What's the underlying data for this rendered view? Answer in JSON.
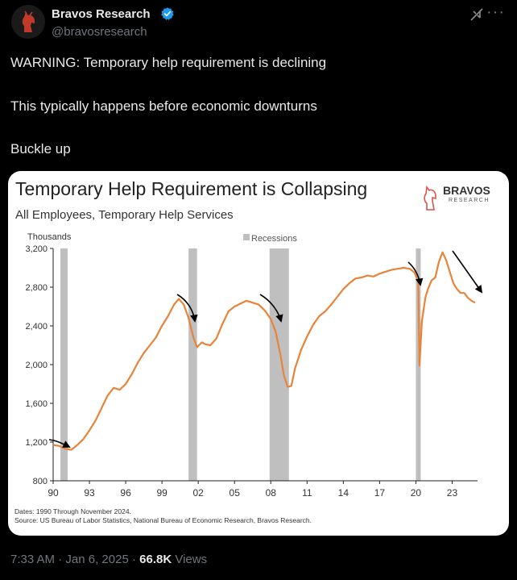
{
  "author": {
    "name": "Bravos Research",
    "handle": "@bravosresearch"
  },
  "icons": {
    "avatar": "bravos-knight-logo",
    "verified": "verified-badge-icon",
    "grok": "grok-icon",
    "more": "more-icon",
    "arrow": "arrow-icon"
  },
  "colors": {
    "accent": "#1d9bf0",
    "line": "#e8833a",
    "recession": "#bfbfbf",
    "brand_red": "#d9534f"
  },
  "tweet": {
    "line1": "WARNING: Temporary help requirement is declining",
    "line2": "This typically happens before economic downturns",
    "line3": "Buckle up"
  },
  "chart_data": {
    "type": "line",
    "title": "Temporary Help Requirement is Collapsing",
    "subtitle": "All Employees, Temporary Help Services",
    "ylabel": "Thousands",
    "legend": "Recessions",
    "legend_placement": "top-center",
    "brand": {
      "name": "BRAVOS",
      "tagline": "RESEARCH"
    },
    "grid": false,
    "ylim": [
      800,
      3200
    ],
    "xlim": [
      1990,
      2025.1
    ],
    "y_ticks": [
      800,
      1200,
      1600,
      2000,
      2400,
      2800,
      3200
    ],
    "y_tick_labels": [
      "800",
      "1,200",
      "1,600",
      "2,000",
      "2,400",
      "2,800",
      "3,200"
    ],
    "x_ticks": [
      1990,
      1993,
      1996,
      1999,
      2002,
      2005,
      2008,
      2011,
      2014,
      2017,
      2020,
      2023
    ],
    "x_tick_labels": [
      "90",
      "93",
      "96",
      "99",
      "02",
      "05",
      "08",
      "11",
      "14",
      "17",
      "20",
      "23"
    ],
    "recessions": [
      [
        1990.6,
        1991.2
      ],
      [
        2001.2,
        2001.9
      ],
      [
        2007.9,
        2009.5
      ],
      [
        2020.0,
        2020.4
      ]
    ],
    "series": [
      {
        "x": [
          1990.0,
          1990.5,
          1991.0,
          1991.5,
          1992.0,
          1992.5,
          1993.0,
          1993.5,
          1994.0,
          1994.5,
          1995.0,
          1995.5,
          1996.0,
          1996.5,
          1997.0,
          1997.5,
          1998.0,
          1998.5,
          1999.0,
          1999.5,
          2000.0,
          2000.4,
          2000.8,
          2001.2,
          2001.6,
          2001.9,
          2002.3,
          2002.6,
          2003.0,
          2003.5,
          2004.0,
          2004.5,
          2005.0,
          2005.5,
          2006.0,
          2006.5,
          2007.0,
          2007.5,
          2008.0,
          2008.4,
          2008.8,
          2009.1,
          2009.4,
          2009.7,
          2010.0,
          2010.5,
          2011.0,
          2011.5,
          2012.0,
          2012.5,
          2013.0,
          2013.5,
          2014.0,
          2014.5,
          2015.0,
          2015.5,
          2016.0,
          2016.5,
          2017.0,
          2017.5,
          2018.0,
          2018.5,
          2019.0,
          2019.5,
          2019.9,
          2020.2,
          2020.3,
          2020.5,
          2020.8,
          2021.0,
          2021.3,
          2021.6,
          2021.9,
          2022.2,
          2022.5,
          2022.8,
          2023.1,
          2023.4,
          2023.7,
          2024.0,
          2024.3,
          2024.6,
          2024.9
        ],
        "y": [
          1170,
          1160,
          1130,
          1120,
          1170,
          1230,
          1320,
          1420,
          1550,
          1680,
          1760,
          1740,
          1800,
          1900,
          2020,
          2120,
          2200,
          2280,
          2400,
          2500,
          2620,
          2680,
          2620,
          2480,
          2280,
          2180,
          2230,
          2210,
          2200,
          2270,
          2420,
          2550,
          2600,
          2630,
          2660,
          2640,
          2620,
          2560,
          2470,
          2340,
          2100,
          1880,
          1770,
          1780,
          1960,
          2150,
          2290,
          2410,
          2500,
          2550,
          2620,
          2700,
          2780,
          2840,
          2890,
          2900,
          2920,
          2910,
          2940,
          2960,
          2980,
          2990,
          3000,
          2990,
          2950,
          2850,
          1990,
          2450,
          2700,
          2780,
          2870,
          2900,
          3060,
          3160,
          3080,
          2960,
          2840,
          2780,
          2740,
          2740,
          2690,
          2660,
          2640
        ]
      }
    ],
    "footnote_dates": "Dates: 1990 Through November 2024.",
    "footnote_source": "Source: US Bureau of Labor Statistics, National Bureau of Economic Research, Bravos Research."
  },
  "meta": {
    "time": "7:33 AM",
    "sep": " · ",
    "date": "Jan 6, 2025",
    "views": "66.8K",
    "views_label": " Views"
  }
}
